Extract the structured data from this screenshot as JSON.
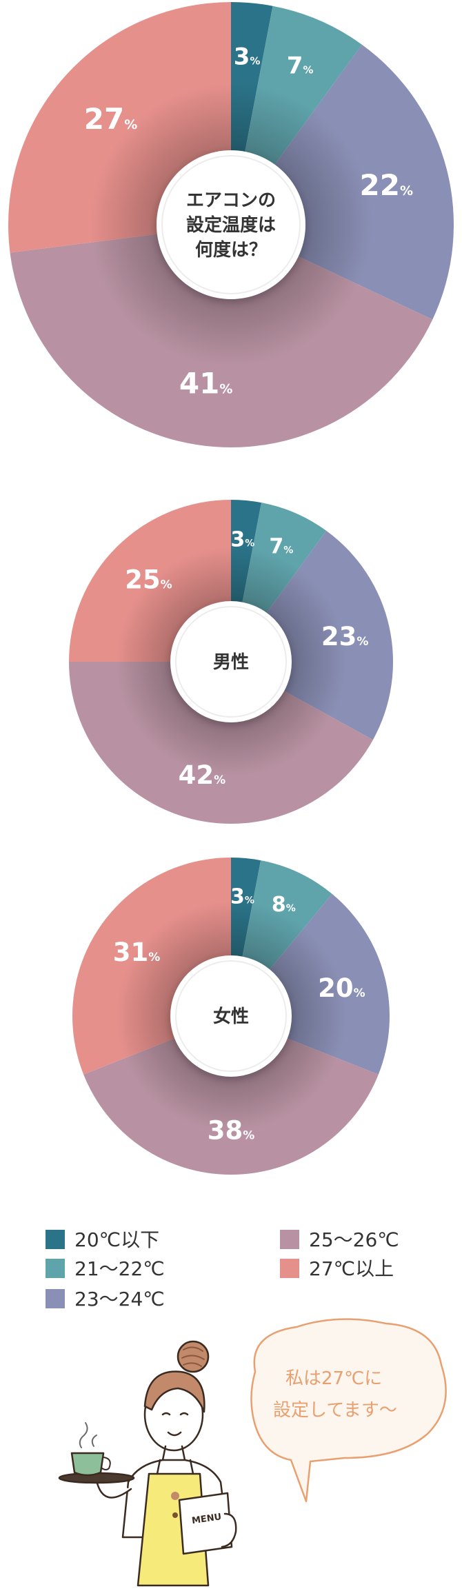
{
  "colors": {
    "c1": "#2b7388",
    "c2": "#5fa3ab",
    "c3": "#8a8fb5",
    "c4": "#b892a2",
    "c5": "#e6908c"
  },
  "chart_data": [
    {
      "type": "pie",
      "center_label": [
        "エアコンの",
        "設定温度は",
        "何度は？"
      ],
      "categories": [
        "20℃以下",
        "21～22℃",
        "23～24℃",
        "25～26℃",
        "27℃以上"
      ],
      "values": [
        3,
        7,
        22,
        41,
        27
      ],
      "unit": "%"
    },
    {
      "type": "pie",
      "center_label": [
        "男性"
      ],
      "categories": [
        "20℃以下",
        "21～22℃",
        "23～24℃",
        "25～26℃",
        "27℃以上"
      ],
      "values": [
        3,
        7,
        23,
        42,
        25
      ],
      "unit": "%"
    },
    {
      "type": "pie",
      "center_label": [
        "女性"
      ],
      "categories": [
        "20℃以下",
        "21～22℃",
        "23～24℃",
        "25～26℃",
        "27℃以上"
      ],
      "values": [
        3,
        8,
        20,
        38,
        31
      ],
      "unit": "%"
    }
  ],
  "legend": {
    "items": [
      "20℃以下",
      "21～22℃",
      "23～24℃",
      "25～26℃",
      "27℃以上"
    ]
  },
  "speech_bubble": {
    "line1": "私は27℃に",
    "line2": "設定してます～"
  },
  "illustration": {
    "menu_text": "MENU"
  }
}
